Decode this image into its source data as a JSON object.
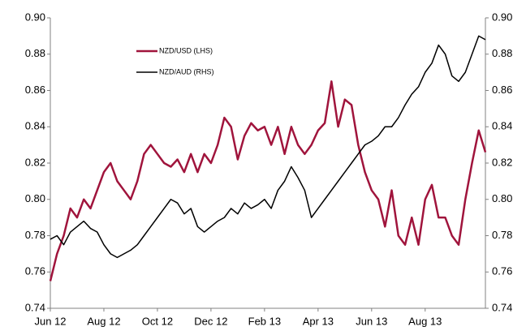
{
  "chart_data": {
    "type": "line",
    "categories": [
      "Jun 12",
      null,
      null,
      null,
      null,
      null,
      null,
      null,
      "Aug 12",
      null,
      null,
      null,
      null,
      null,
      null,
      null,
      "Oct 12",
      null,
      null,
      null,
      null,
      null,
      null,
      null,
      "Dec 12",
      null,
      null,
      null,
      null,
      null,
      null,
      null,
      "Feb 13",
      null,
      null,
      null,
      null,
      null,
      null,
      null,
      "Apr 13",
      null,
      null,
      null,
      null,
      null,
      null,
      null,
      "Jun 13",
      null,
      null,
      null,
      null,
      null,
      null,
      null,
      "Aug 13",
      null,
      null,
      null,
      null,
      null,
      null,
      null,
      null,
      null
    ],
    "series": [
      {
        "name": "NZD/USD (LHS)",
        "color": "#a0143c",
        "axis": "y",
        "values": [
          0.755,
          0.77,
          0.78,
          0.795,
          0.79,
          0.8,
          0.795,
          0.805,
          0.815,
          0.82,
          0.81,
          0.805,
          0.8,
          0.81,
          0.825,
          0.83,
          0.825,
          0.82,
          0.818,
          0.822,
          0.815,
          0.825,
          0.815,
          0.825,
          0.82,
          0.83,
          0.845,
          0.84,
          0.822,
          0.835,
          0.842,
          0.838,
          0.84,
          0.83,
          0.84,
          0.825,
          0.84,
          0.83,
          0.825,
          0.83,
          0.838,
          0.842,
          0.865,
          0.84,
          0.855,
          0.852,
          0.83,
          0.815,
          0.805,
          0.8,
          0.785,
          0.805,
          0.78,
          0.775,
          0.79,
          0.775,
          0.8,
          0.808,
          0.79,
          0.79,
          0.78,
          0.775,
          0.8,
          0.82,
          0.838,
          0.826
        ]
      },
      {
        "name": "NZD/AUD (RHS)",
        "color": "#000000",
        "axis": "y2",
        "values": [
          0.778,
          0.78,
          0.775,
          0.782,
          0.785,
          0.788,
          0.784,
          0.782,
          0.775,
          0.77,
          0.768,
          0.77,
          0.772,
          0.775,
          0.78,
          0.785,
          0.79,
          0.795,
          0.8,
          0.798,
          0.792,
          0.795,
          0.785,
          0.782,
          0.785,
          0.788,
          0.79,
          0.795,
          0.792,
          0.798,
          0.795,
          0.797,
          0.8,
          0.795,
          0.805,
          0.81,
          0.818,
          0.812,
          0.805,
          0.79,
          0.795,
          0.8,
          0.805,
          0.81,
          0.815,
          0.82,
          0.825,
          0.83,
          0.832,
          0.835,
          0.84,
          0.84,
          0.845,
          0.852,
          0.858,
          0.862,
          0.87,
          0.875,
          0.885,
          0.88,
          0.868,
          0.865,
          0.87,
          0.88,
          0.89,
          0.888
        ]
      }
    ],
    "ylim": [
      0.74,
      0.9
    ],
    "yticks": [
      0.74,
      0.76,
      0.78,
      {
        "value": 0.8,
        "label": "0.80"
      },
      0.82,
      0.84,
      0.86,
      0.88,
      {
        "value": 0.9,
        "label": "0.90"
      }
    ],
    "y2lim": [
      0.74,
      0.9
    ],
    "y2ticks": [
      0.74,
      0.76,
      0.78,
      {
        "value": 0.8,
        "label": "0.80"
      },
      0.82,
      0.84,
      0.86,
      0.88,
      {
        "value": 0.9,
        "label": "0.90"
      }
    ],
    "grid": false,
    "legend": "top-left"
  }
}
